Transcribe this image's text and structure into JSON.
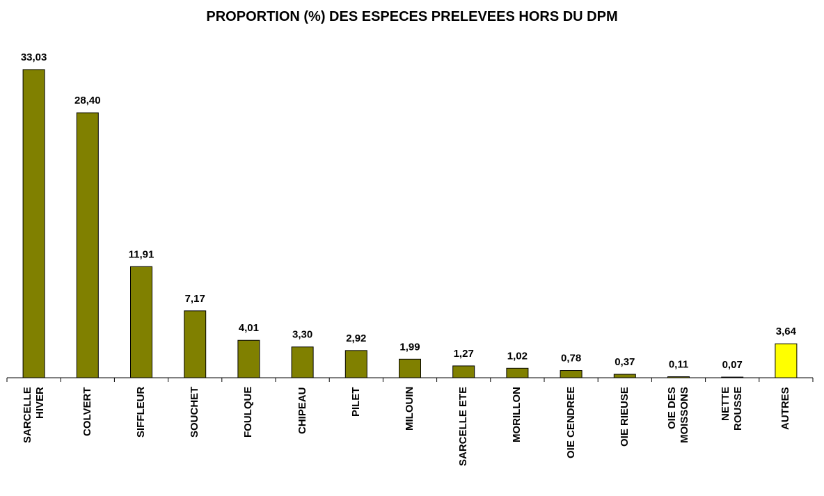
{
  "chart_data": {
    "type": "bar",
    "title": "PROPORTION (%) DES ESPECES PRELEVEES HORS DU DPM",
    "categories": [
      "SARCELLE\nHIVER",
      "COLVERT",
      "SIFFLEUR",
      "SOUCHET",
      "FOULQUE",
      "CHIPEAU",
      "PILET",
      "MILOUIN",
      "SARCELLE ETE",
      "MORILLON",
      "OIE CENDREE",
      "OIE RIEUSE",
      "OIE DES\nMOISSONS",
      "NETTE\nROUSSE",
      "AUTRES"
    ],
    "values": [
      33.03,
      28.4,
      11.91,
      7.17,
      4.01,
      3.3,
      2.92,
      1.99,
      1.27,
      1.02,
      0.78,
      0.37,
      0.11,
      0.07,
      3.64
    ],
    "value_labels": [
      "33,03",
      "28,40",
      "11,91",
      "7,17",
      "4,01",
      "3,30",
      "2,92",
      "1,99",
      "1,27",
      "1,02",
      "0,78",
      "0,37",
      "0,11",
      "0,07",
      "3,64"
    ],
    "colors": [
      "#808000",
      "#808000",
      "#808000",
      "#808000",
      "#808000",
      "#808000",
      "#808000",
      "#808000",
      "#808000",
      "#808000",
      "#808000",
      "#808000",
      "#808000",
      "#808000",
      "#ffff00"
    ]
  }
}
